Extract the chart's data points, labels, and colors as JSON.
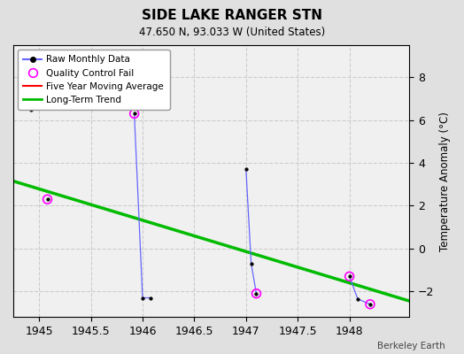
{
  "title": "SIDE LAKE RANGER STN",
  "subtitle": "47.650 N, 93.033 W (United States)",
  "credit": "Berkeley Earth",
  "xlim": [
    1944.75,
    1948.58
  ],
  "ylim": [
    -3.2,
    9.5
  ],
  "yticks": [
    -2,
    0,
    2,
    4,
    6,
    8
  ],
  "xticks": [
    1945,
    1945.5,
    1946,
    1946.5,
    1947,
    1947.5,
    1948
  ],
  "xtick_labels": [
    "1945",
    "1945.5",
    "1946",
    "1946.5",
    "1947",
    "1947.5",
    "1948"
  ],
  "ylabel": "Temperature Anomaly (°C)",
  "bg_color": "#e0e0e0",
  "plot_bg_color": "#f0f0f0",
  "raw_color": "#6666ff",
  "raw_marker_color": "#000000",
  "raw_segments": [
    {
      "x": [
        1944.92
      ],
      "y": [
        6.5
      ]
    },
    {
      "x": [
        1945.08
      ],
      "y": [
        2.3
      ]
    },
    {
      "x": [
        1945.92,
        1946.0,
        1946.08
      ],
      "y": [
        6.3,
        -2.3,
        -2.3
      ]
    },
    {
      "x": [
        1947.0,
        1947.05,
        1947.1
      ],
      "y": [
        3.7,
        -0.7,
        -2.1
      ]
    },
    {
      "x": [
        1948.0,
        1948.08,
        1948.2
      ],
      "y": [
        -1.3,
        -2.35,
        -2.6
      ]
    }
  ],
  "qc_x": [
    1945.08,
    1945.92,
    1947.1,
    1948.0,
    1948.2
  ],
  "qc_y": [
    2.3,
    6.3,
    -2.1,
    -1.3,
    -2.6
  ],
  "qc_color": "#ff00ff",
  "trend_x": [
    1944.75,
    1948.58
  ],
  "trend_y": [
    3.15,
    -2.45
  ],
  "trend_color": "#00bb00",
  "mavg_color": "#ff0000",
  "grid_color": "#cccccc",
  "grid_style": "--"
}
